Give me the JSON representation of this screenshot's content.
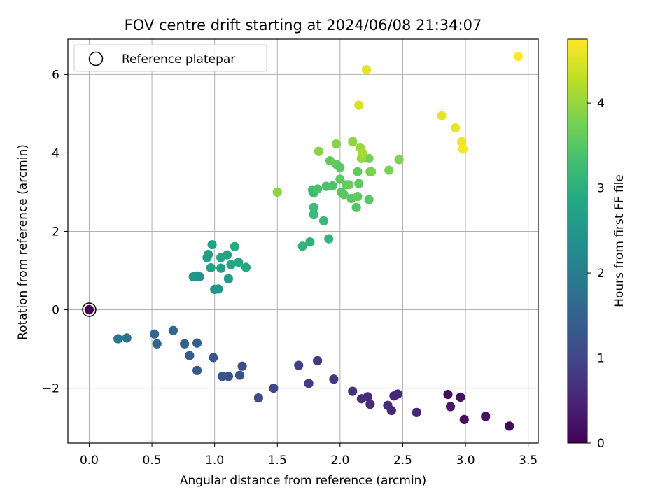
{
  "chart_data": {
    "type": "scatter",
    "title": "FOV centre drift starting at 2024/06/08 21:34:07",
    "xlabel": "Angular distance from reference (arcmin)",
    "ylabel": "Rotation from reference (arcmin)",
    "colorbar_label": "Hours from first FF file",
    "xlim": [
      -0.17,
      3.58
    ],
    "ylim": [
      -3.4,
      6.9
    ],
    "clim": [
      0,
      4.75
    ],
    "x_ticks": [
      0.0,
      0.5,
      1.0,
      1.5,
      2.0,
      2.5,
      3.0,
      3.5
    ],
    "x_tick_labels": [
      "0.0",
      "0.5",
      "1.0",
      "1.5",
      "2.0",
      "2.5",
      "3.0",
      "3.5"
    ],
    "y_ticks": [
      -2,
      0,
      2,
      4,
      6
    ],
    "y_tick_labels": [
      "−2",
      "0",
      "2",
      "4",
      "6"
    ],
    "c_ticks": [
      0,
      1,
      2,
      3,
      4
    ],
    "c_tick_labels": [
      "0",
      "1",
      "2",
      "3",
      "4"
    ],
    "grid": true,
    "colormap": "viridis",
    "legend": {
      "location": "top-left",
      "entries": [
        "Reference platepar"
      ]
    },
    "reference_point": {
      "x": 0.0,
      "y": 0.0,
      "c": 0.0
    },
    "points": [
      [
        3.35,
        -2.97,
        0.1
      ],
      [
        2.99,
        -2.8,
        0.2
      ],
      [
        3.16,
        -2.72,
        0.25
      ],
      [
        2.96,
        -2.23,
        0.2
      ],
      [
        2.88,
        -2.47,
        0.3
      ],
      [
        2.86,
        -2.16,
        0.15
      ],
      [
        2.61,
        -2.62,
        0.5
      ],
      [
        2.41,
        -2.57,
        0.55
      ],
      [
        2.38,
        -2.44,
        0.6
      ],
      [
        2.43,
        -2.2,
        0.5
      ],
      [
        2.46,
        -2.15,
        0.55
      ],
      [
        2.24,
        -2.41,
        0.6
      ],
      [
        2.17,
        -2.27,
        0.65
      ],
      [
        2.22,
        -2.22,
        0.6
      ],
      [
        2.1,
        -2.08,
        0.7
      ],
      [
        1.95,
        -1.77,
        0.75
      ],
      [
        1.82,
        -1.3,
        0.8
      ],
      [
        1.75,
        -1.88,
        0.85
      ],
      [
        1.67,
        -1.42,
        0.9
      ],
      [
        1.47,
        -2.0,
        1.0
      ],
      [
        1.35,
        -2.25,
        1.1
      ],
      [
        1.22,
        -1.44,
        1.15
      ],
      [
        1.2,
        -1.67,
        1.2
      ],
      [
        1.11,
        -1.7,
        1.2
      ],
      [
        1.06,
        -1.7,
        1.25
      ],
      [
        0.99,
        -1.22,
        1.3
      ],
      [
        0.86,
        -1.55,
        1.3
      ],
      [
        0.86,
        -0.85,
        1.4
      ],
      [
        0.8,
        -1.17,
        1.35
      ],
      [
        0.76,
        -0.87,
        1.45
      ],
      [
        0.67,
        -0.53,
        1.6
      ],
      [
        0.54,
        -0.87,
        1.55
      ],
      [
        0.52,
        -0.62,
        1.6
      ],
      [
        0.3,
        -0.72,
        1.8
      ],
      [
        0.23,
        -0.74,
        1.85
      ],
      [
        0.83,
        0.84,
        2.45
      ],
      [
        0.86,
        0.86,
        2.5
      ],
      [
        0.88,
        0.84,
        2.4
      ],
      [
        1.0,
        0.52,
        2.5
      ],
      [
        1.03,
        0.53,
        2.55
      ],
      [
        1.11,
        0.79,
        2.6
      ],
      [
        0.94,
        1.33,
        2.65
      ],
      [
        0.95,
        1.41,
        2.6
      ],
      [
        0.97,
        1.07,
        2.7
      ],
      [
        0.98,
        1.66,
        2.75
      ],
      [
        1.05,
        1.06,
        2.7
      ],
      [
        1.05,
        1.33,
        2.8
      ],
      [
        1.1,
        1.4,
        2.75
      ],
      [
        1.13,
        1.15,
        2.8
      ],
      [
        1.16,
        1.61,
        2.9
      ],
      [
        1.19,
        1.21,
        2.85
      ],
      [
        1.25,
        1.08,
        2.85
      ],
      [
        1.7,
        1.62,
        3.1
      ],
      [
        1.76,
        1.73,
        3.05
      ],
      [
        1.91,
        1.81,
        3.1
      ],
      [
        1.87,
        2.27,
        3.2
      ],
      [
        1.79,
        2.43,
        3.2
      ],
      [
        1.79,
        2.61,
        3.25
      ],
      [
        1.78,
        3.06,
        3.3
      ],
      [
        1.79,
        2.98,
        3.25
      ],
      [
        1.82,
        3.08,
        3.35
      ],
      [
        1.89,
        3.15,
        3.4
      ],
      [
        1.92,
        3.8,
        3.6
      ],
      [
        1.94,
        3.16,
        3.4
      ],
      [
        1.97,
        3.71,
        3.6
      ],
      [
        2.0,
        3.33,
        3.55
      ],
      [
        2.0,
        3.63,
        3.5
      ],
      [
        2.01,
        3.0,
        3.5
      ],
      [
        2.03,
        2.94,
        3.5
      ],
      [
        2.05,
        3.19,
        3.6
      ],
      [
        2.07,
        3.19,
        3.65
      ],
      [
        2.09,
        2.84,
        3.5
      ],
      [
        2.13,
        2.61,
        3.45
      ],
      [
        2.14,
        2.89,
        3.55
      ],
      [
        2.14,
        3.52,
        3.6
      ],
      [
        2.15,
        3.22,
        3.55
      ],
      [
        2.23,
        2.81,
        3.5
      ],
      [
        2.24,
        3.52,
        3.7
      ],
      [
        2.25,
        3.52,
        3.8
      ],
      [
        2.23,
        3.86,
        3.75
      ],
      [
        2.39,
        3.56,
        3.8
      ],
      [
        2.47,
        3.83,
        3.85
      ],
      [
        1.83,
        4.04,
        3.9
      ],
      [
        1.97,
        4.23,
        3.9
      ],
      [
        2.1,
        4.29,
        3.95
      ],
      [
        2.16,
        4.14,
        4.0
      ],
      [
        2.17,
        3.86,
        4.0
      ],
      [
        2.18,
        4.0,
        4.1
      ],
      [
        1.5,
        3.0,
        3.95
      ],
      [
        2.15,
        5.22,
        4.45
      ],
      [
        2.21,
        6.12,
        4.55
      ],
      [
        2.81,
        4.95,
        4.55
      ],
      [
        2.92,
        4.64,
        4.6
      ],
      [
        2.97,
        4.29,
        4.65
      ],
      [
        2.98,
        4.1,
        4.7
      ],
      [
        3.42,
        6.46,
        4.75
      ]
    ]
  }
}
